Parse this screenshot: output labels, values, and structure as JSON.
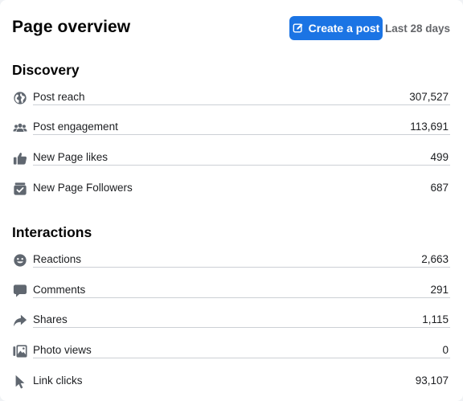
{
  "header": {
    "title": "Page overview",
    "create_label": "Create a post",
    "date_range": "Last 28 days"
  },
  "discovery": {
    "title": "Discovery",
    "items": [
      {
        "icon": "globe-icon",
        "label": "Post reach",
        "value": "307,527"
      },
      {
        "icon": "people-icon",
        "label": "Post engagement",
        "value": "113,691"
      },
      {
        "icon": "thumbs-up-icon",
        "label": "New Page likes",
        "value": "499"
      },
      {
        "icon": "follow-check-icon",
        "label": "New Page Followers",
        "value": "687"
      }
    ]
  },
  "interactions": {
    "title": "Interactions",
    "items": [
      {
        "icon": "smiley-icon",
        "label": "Reactions",
        "value": "2,663"
      },
      {
        "icon": "comment-bubble-icon",
        "label": "Comments",
        "value": "291"
      },
      {
        "icon": "share-arrow-icon",
        "label": "Shares",
        "value": "1,115"
      },
      {
        "icon": "photo-icon",
        "label": "Photo views",
        "value": "0"
      },
      {
        "icon": "cursor-icon",
        "label": "Link clicks",
        "value": "93,107"
      }
    ]
  },
  "colors": {
    "accent": "#1b74e4",
    "icon": "#606770",
    "muted_text": "#65676b",
    "divider": "#ccd0d5"
  }
}
